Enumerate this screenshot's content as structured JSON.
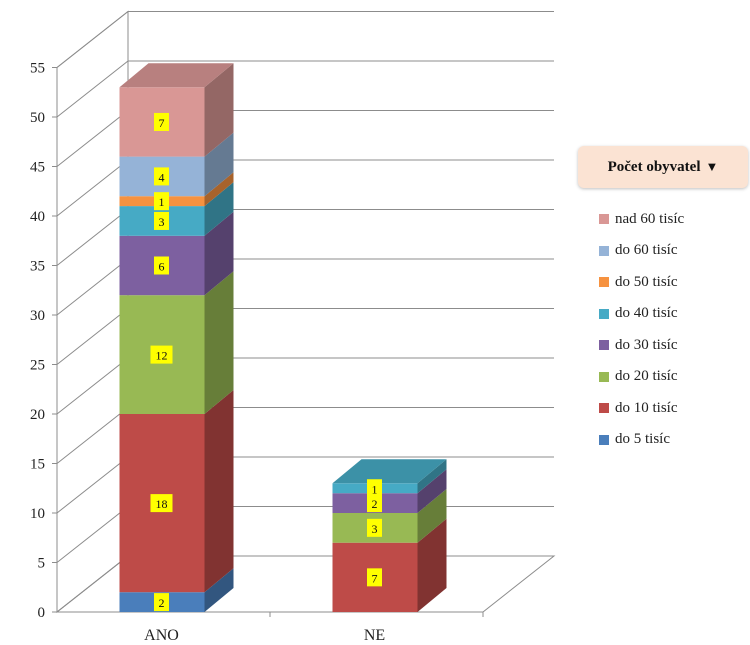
{
  "chart_data": {
    "type": "bar",
    "stacked": true,
    "three_d": true,
    "categories": [
      "ANO",
      "NE"
    ],
    "series": [
      {
        "name": "do 5 tisíc",
        "color": "#4a7ebb",
        "values": [
          2,
          0
        ]
      },
      {
        "name": "do 10 tisíc",
        "color": "#be4b48",
        "values": [
          18,
          7
        ]
      },
      {
        "name": "do 20 tisíc",
        "color": "#98b954",
        "values": [
          12,
          3
        ]
      },
      {
        "name": "do 30 tisíc",
        "color": "#7d60a0",
        "values": [
          6,
          2
        ]
      },
      {
        "name": "do 40 tisíc",
        "color": "#46aac5",
        "values": [
          3,
          1
        ]
      },
      {
        "name": "do 50 tisíc",
        "color": "#f69240",
        "values": [
          1,
          0
        ]
      },
      {
        "name": "do 60 tisíc",
        "color": "#95b3d7",
        "values": [
          4,
          0
        ]
      },
      {
        "name": "nad 60 tisíc",
        "color": "#d99795",
        "values": [
          7,
          0
        ]
      }
    ],
    "ylim": [
      0,
      55
    ],
    "yticks": [
      0,
      5,
      10,
      15,
      20,
      25,
      30,
      35,
      40,
      45,
      50,
      55
    ],
    "grid": true,
    "data_labels": true,
    "data_label_background": "#ffff00",
    "legend": {
      "title": "Počet obyvatel",
      "title_arrow": "▼",
      "position": "right"
    }
  }
}
